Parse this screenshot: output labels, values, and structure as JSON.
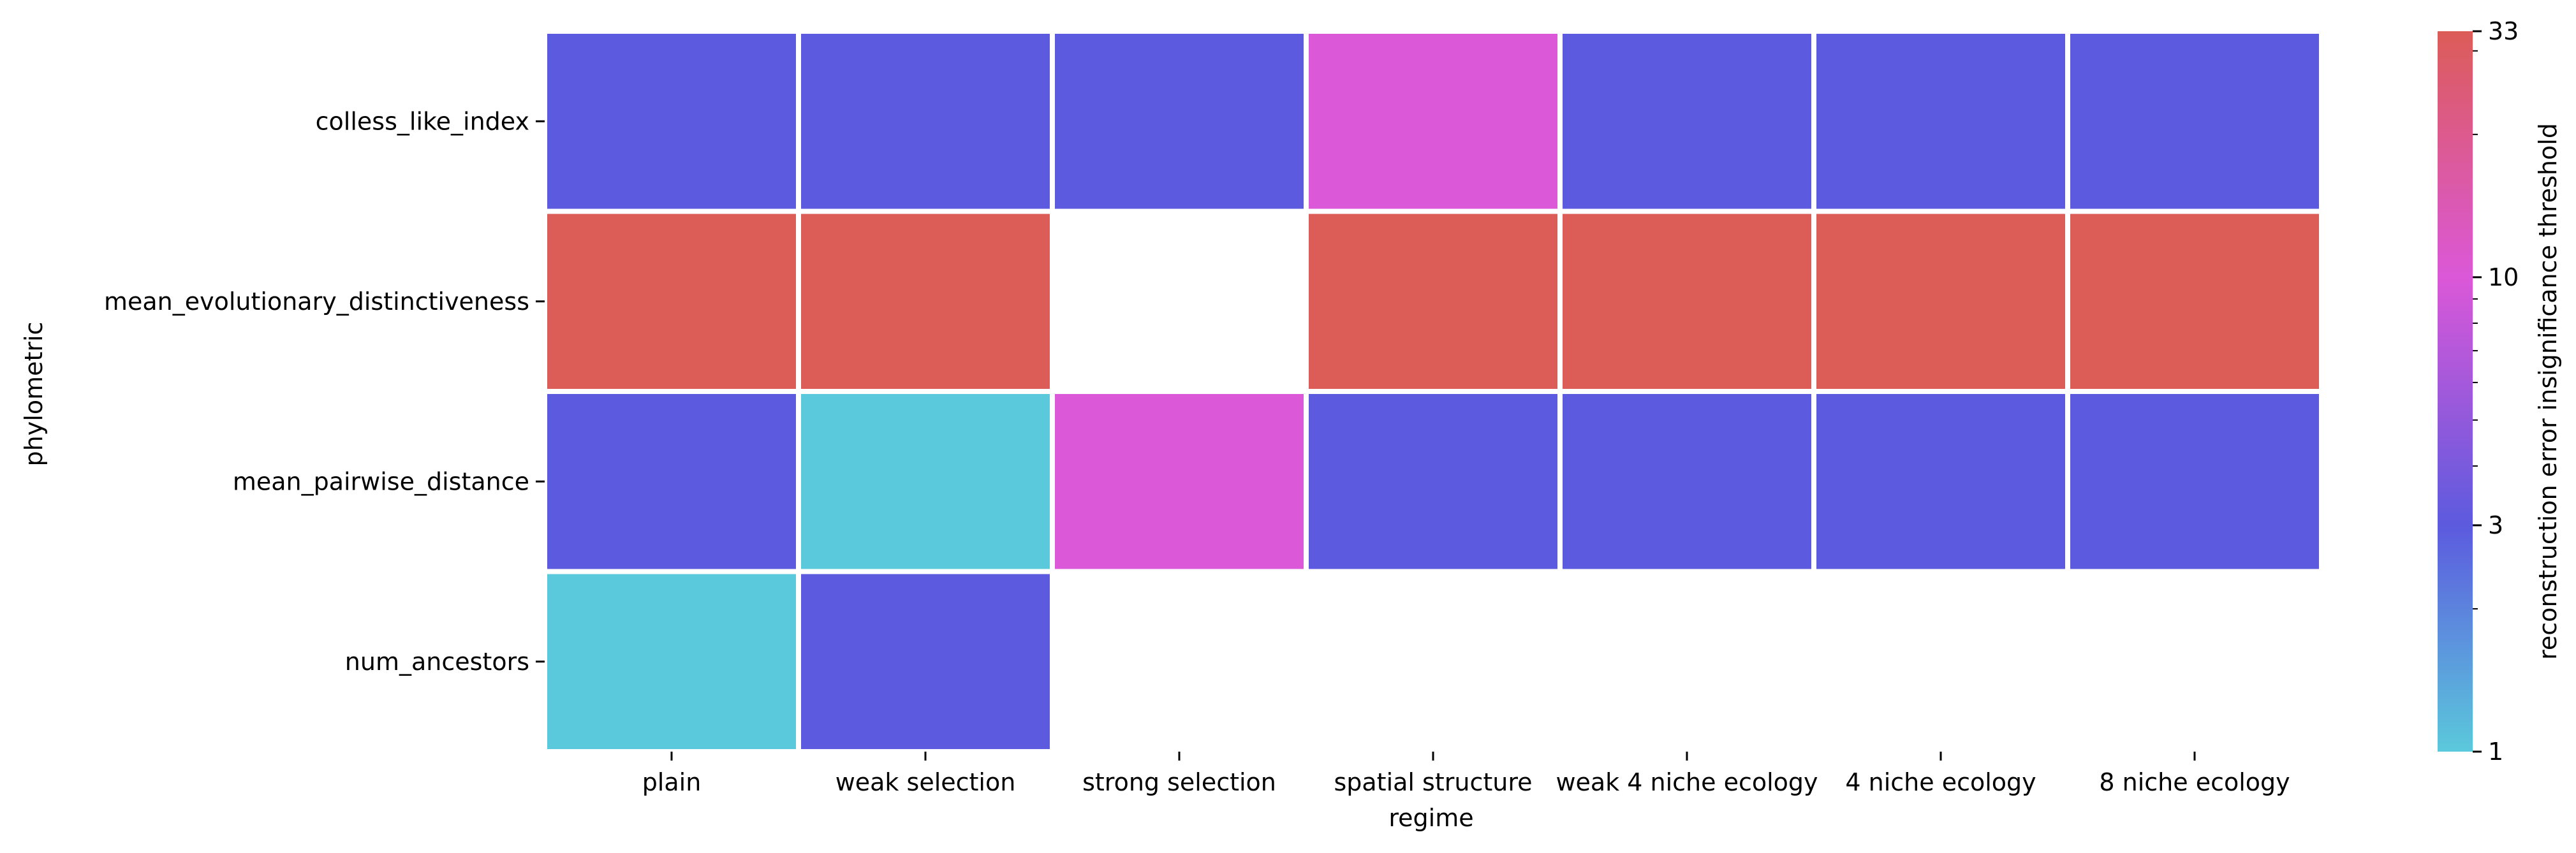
{
  "chart_data": {
    "type": "heatmap",
    "xlabel": "regime",
    "ylabel": "phylometric",
    "x_categories": [
      "plain",
      "weak selection",
      "strong selection",
      "spatial structure",
      "weak 4 niche ecology",
      "4 niche ecology",
      "8 niche ecology"
    ],
    "y_categories": [
      "colless_like_index",
      "mean_evolutionary_distinctiveness",
      "mean_pairwise_distance",
      "num_ancestors"
    ],
    "values": [
      [
        3,
        3,
        3,
        10,
        3,
        3,
        3
      ],
      [
        33,
        33,
        null,
        33,
        33,
        33,
        33
      ],
      [
        3,
        1,
        10,
        3,
        3,
        3,
        3
      ],
      [
        1,
        3,
        null,
        null,
        null,
        null,
        null
      ]
    ],
    "colorbar": {
      "label": "reconstruction error insignificance threshold",
      "scale": "log",
      "range": [
        1,
        33
      ],
      "ticks": [
        1,
        3,
        10,
        33
      ],
      "tick_labels": [
        "1",
        "3",
        "10",
        "33"
      ],
      "colors": [
        "#5bc9dc",
        "#5c5ade",
        "#db58d8",
        "#dc5c58"
      ]
    },
    "grid": false
  }
}
